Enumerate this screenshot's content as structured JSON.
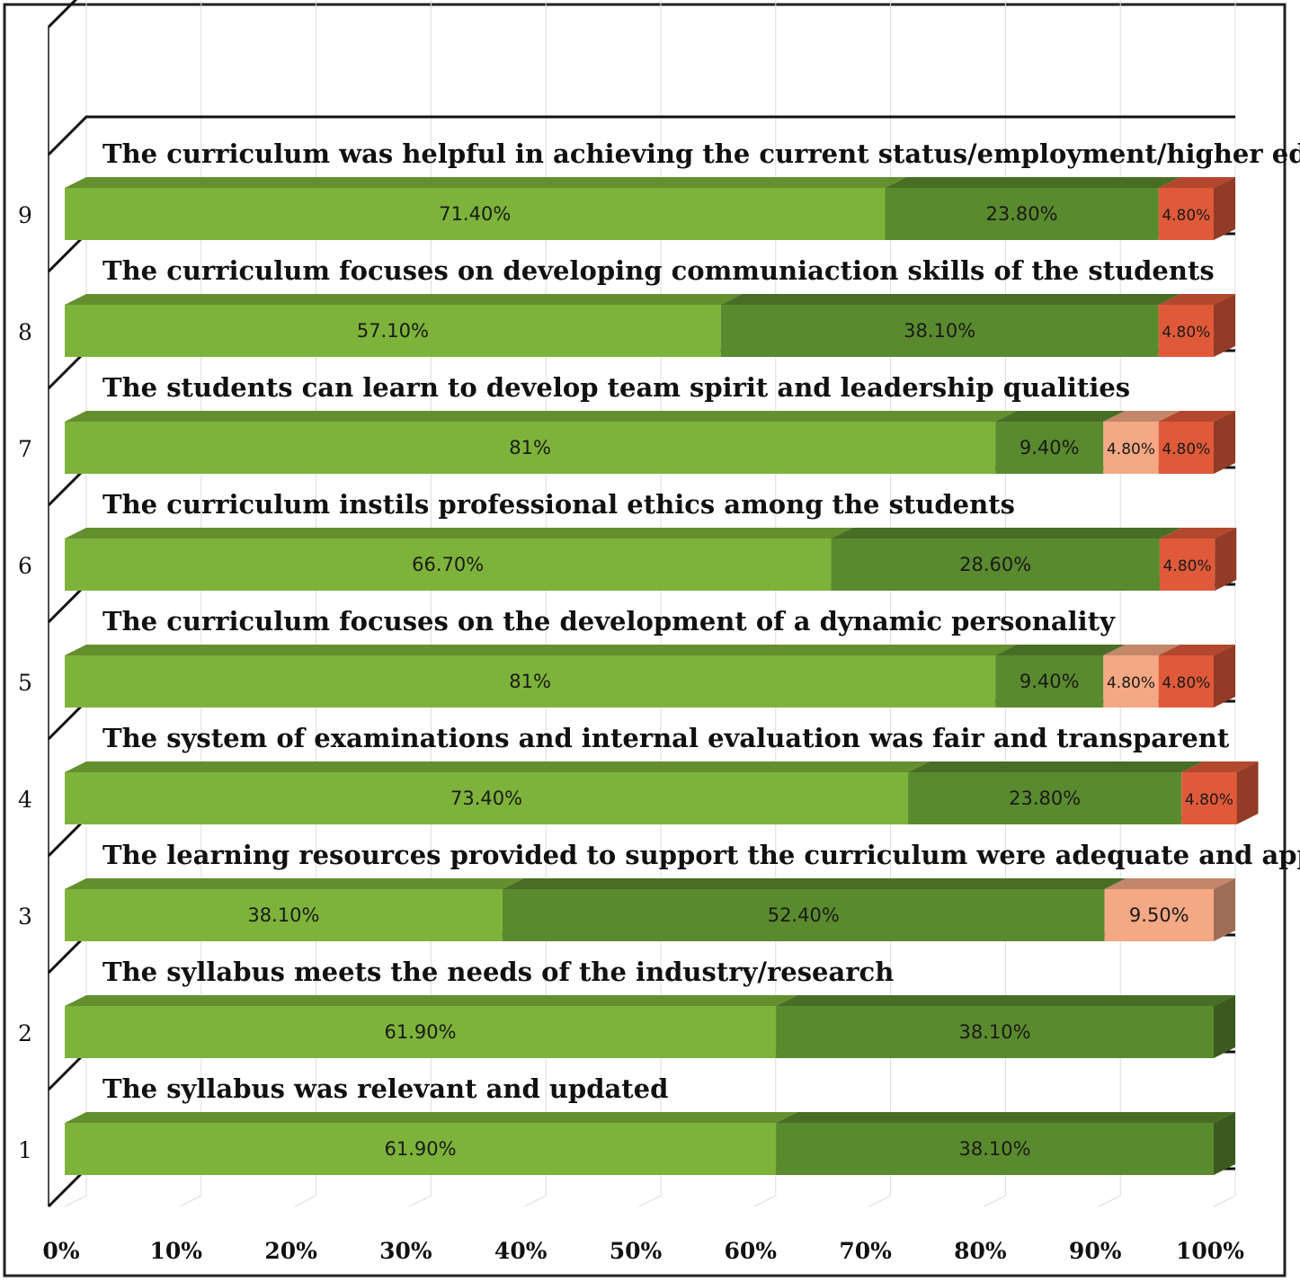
{
  "chart_data": {
    "type": "bar",
    "orientation": "horizontal",
    "stacked": "percent",
    "style": "3d",
    "grid": true,
    "xlim": [
      0,
      100
    ],
    "x_ticks": [
      "0%",
      "10%",
      "20%",
      "30%",
      "40%",
      "50%",
      "60%",
      "70%",
      "80%",
      "90%",
      "100%"
    ],
    "categories": [
      "1",
      "2",
      "3",
      "4",
      "5",
      "6",
      "7",
      "8",
      "9"
    ],
    "annotations": [
      "The syllabus was relevant and updated",
      "The syllabus meets the needs of the industry/research",
      "The learning resources provided to support the curriculum were adequate and appropriate",
      "The system of examinations and internal evaluation was fair and transparent",
      "The curriculum focuses on the development of a dynamic personality",
      "The curriculum instils professional ethics among the students",
      "The students can learn to develop team spirit and leadership qualities",
      "The curriculum focuses on developing communiaction skills of the students",
      "The curriculum was helpful in achieving the current status/employment/higher education"
    ],
    "series": [
      {
        "color": "#7db33a",
        "values": [
          61.9,
          61.9,
          38.1,
          73.4,
          81,
          66.7,
          81,
          57.1,
          71.4
        ],
        "labels": [
          "61.90%",
          "61.90%",
          "38.10%",
          "73.40%",
          "81%",
          "66.70%",
          "81%",
          "57.10%",
          "71.40%"
        ]
      },
      {
        "color": "#5a8a2e",
        "values": [
          38.1,
          38.1,
          52.4,
          23.8,
          9.4,
          28.6,
          9.4,
          38.1,
          23.8
        ],
        "labels": [
          "38.10%",
          "38.10%",
          "52.40%",
          "23.80%",
          "9.40%",
          "28.60%",
          "9.40%",
          "38.10%",
          "23.80%"
        ]
      },
      {
        "color": "#f4a883",
        "values": [
          0,
          0,
          9.5,
          0,
          4.8,
          0,
          4.8,
          0,
          0
        ],
        "labels": [
          "",
          "",
          "9.50%",
          "",
          "4.80%",
          "",
          "4.80%",
          "",
          ""
        ]
      },
      {
        "color": "#e05a3a",
        "values": [
          0,
          0,
          0,
          4.8,
          4.8,
          4.8,
          4.8,
          4.8,
          4.8
        ],
        "labels": [
          "",
          "",
          "",
          "4.80%",
          "4.80%",
          "4.80%",
          "4.80%",
          "4.80%",
          "4.80%"
        ]
      }
    ]
  }
}
